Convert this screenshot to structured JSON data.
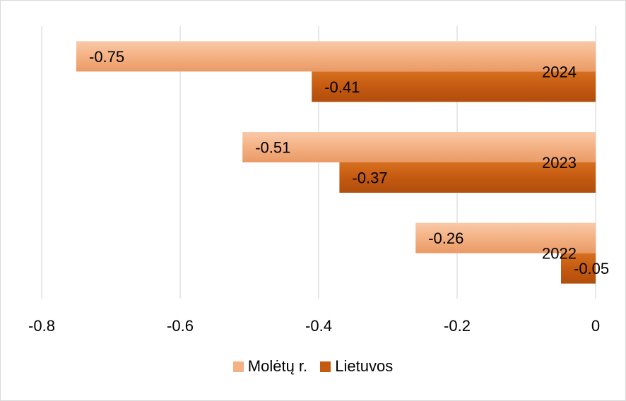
{
  "chart_data": {
    "type": "bar",
    "orientation": "horizontal",
    "categories": [
      "2024",
      "2023",
      "2022"
    ],
    "series": [
      {
        "name": "Molėtų r.",
        "color": "#f4b183",
        "values": [
          -0.75,
          -0.51,
          -0.26
        ]
      },
      {
        "name": "Lietuvos",
        "color": "#c55a11",
        "values": [
          -0.41,
          -0.37,
          -0.05
        ]
      }
    ],
    "xlim": [
      -0.8,
      0
    ],
    "xticks": [
      "-0.8",
      "-0.6",
      "-0.4",
      "-0.2",
      "0"
    ],
    "grid": true,
    "legend_position": "bottom"
  }
}
